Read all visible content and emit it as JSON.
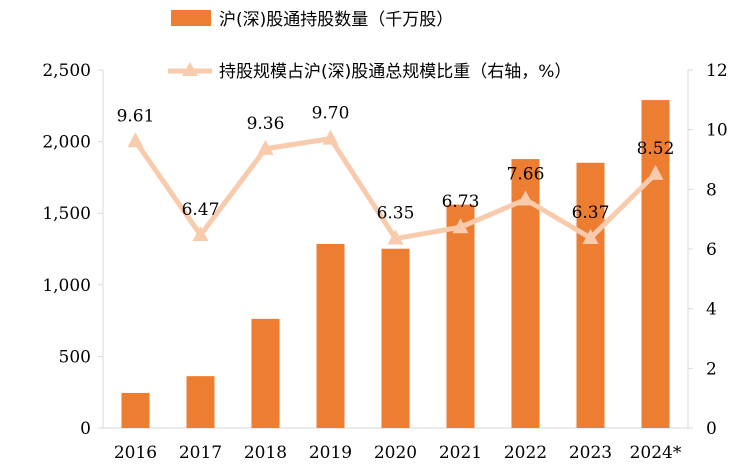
{
  "chart_data": {
    "type": "bar+line",
    "categories": [
      "2016",
      "2017",
      "2018",
      "2019",
      "2020",
      "2021",
      "2022",
      "2023",
      "2024*"
    ],
    "series": [
      {
        "name": "沪(深)股通持股数量（千万股）",
        "type": "bar",
        "axis": "left",
        "values": [
          245,
          362,
          762,
          1285,
          1252,
          1560,
          1878,
          1852,
          2290
        ]
      },
      {
        "name": "持股规模占沪(深)股通总规模比重（右轴，%）",
        "type": "line",
        "axis": "right",
        "values": [
          9.61,
          6.47,
          9.36,
          9.7,
          6.35,
          6.73,
          7.66,
          6.37,
          8.52
        ],
        "labels": [
          "9.61",
          "6.47",
          "9.36",
          "9.70",
          "6.35",
          "6.73",
          "7.66",
          "6.37",
          "8.52"
        ]
      }
    ],
    "y_left": {
      "min": 0,
      "max": 2500,
      "ticks": [
        "0",
        "500",
        "1,000",
        "1,500",
        "2,000",
        "2,500"
      ]
    },
    "y_right": {
      "min": 0,
      "max": 12,
      "ticks": [
        "0",
        "2",
        "4",
        "6",
        "8",
        "10",
        "12"
      ]
    },
    "colors": {
      "bar": "#ed7d31",
      "line": "#f8cbad"
    },
    "legend_placement": "top",
    "grid": false
  }
}
